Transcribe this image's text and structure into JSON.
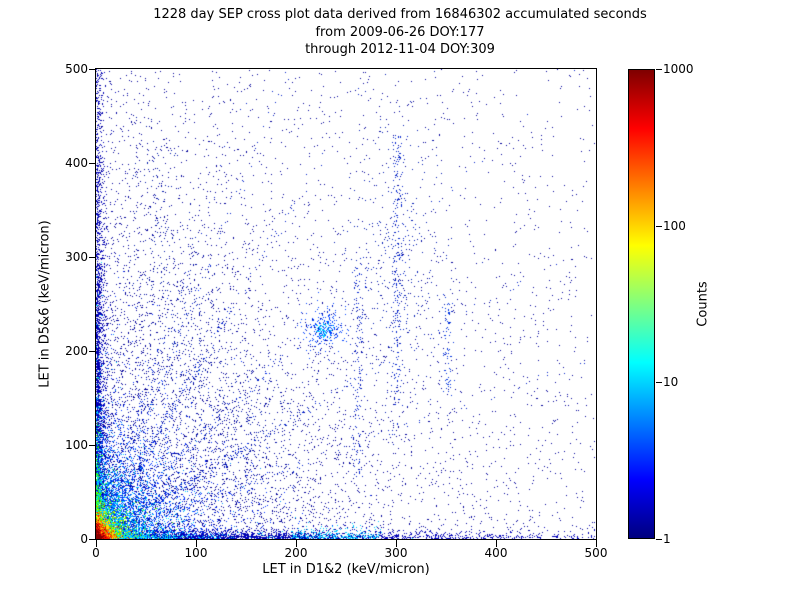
{
  "chart_data": {
    "type": "heatmap",
    "title_lines": [
      "1228 day SEP cross plot data derived from 16846302 accumulated seconds",
      "from 2009-06-26 DOY:177",
      "through 2012-11-04 DOY:309"
    ],
    "xlabel": "LET in D1&2 (keV/micron)",
    "ylabel": "LET in D5&6 (keV/micron)",
    "xlim": [
      0,
      500
    ],
    "ylim": [
      0,
      500
    ],
    "xticks": [
      "0",
      "100",
      "200",
      "300",
      "400",
      "500"
    ],
    "yticks": [
      "500",
      "400",
      "300",
      "200",
      "100",
      "0"
    ],
    "grid": false,
    "colorbar": {
      "label": "Counts",
      "scale": "log",
      "min": 1,
      "max": 1000,
      "ticks": [
        "1000",
        "100",
        "10",
        "1"
      ],
      "colormap": "jet"
    },
    "summary": "2D histogram of particle LET coincidence events; extremely dense hot spot (counts up to ~1000, red) at the origin, cyan/green halo below ~20 keV/micron, dense blue bands hugging both axes, faint diagonal ray tracks fanning out from the origin, a small cluster near (228,222), sparse vertical streaks near x=262, x=302 and x=352, and a diffuse field of single-count dark blue events over the full 0-500 range.",
    "render": {
      "seed": 20091771,
      "groups": [
        {
          "type": "uniform",
          "n": 1500,
          "color": "#000099",
          "x0": 0,
          "x1": 500,
          "y0": 0,
          "y1": 500
        },
        {
          "type": "exp2",
          "n": 5200,
          "color": "#000099",
          "mx": 140,
          "my": 170
        },
        {
          "type": "exp2",
          "n": 2800,
          "color": "#0000b8",
          "mx": 3,
          "my": 170
        },
        {
          "type": "exp2",
          "n": 700,
          "color": "#0000a8",
          "mx": 6,
          "my": 330
        },
        {
          "type": "exp2",
          "n": 2800,
          "color": "#0000b8",
          "mx": 160,
          "my": 3
        },
        {
          "type": "uniformx_expy",
          "n": 260,
          "color": "#00c8ff",
          "x0": 195,
          "x1": 285,
          "my": 4
        },
        {
          "type": "ray",
          "n": 200,
          "color": "#0022cc",
          "dx": 1,
          "dy": 2.6,
          "mt": 70,
          "jitter": 2.5
        },
        {
          "type": "ray",
          "n": 190,
          "color": "#0022cc",
          "dx": 1,
          "dy": 1.8,
          "mt": 80,
          "jitter": 2.5
        },
        {
          "type": "ray",
          "n": 240,
          "color": "#0022cc",
          "dx": 1,
          "dy": 1.05,
          "mt": 95,
          "jitter": 2.5
        },
        {
          "type": "ray",
          "n": 190,
          "color": "#0022cc",
          "dx": 1,
          "dy": 0.65,
          "mt": 85,
          "jitter": 2.5
        },
        {
          "type": "ray",
          "n": 170,
          "color": "#0022cc",
          "dx": 1.55,
          "dy": 1,
          "mt": 80,
          "jitter": 2.5
        },
        {
          "type": "ray",
          "n": 170,
          "color": "#0022cc",
          "dx": 2.6,
          "dy": 1,
          "mt": 70,
          "jitter": 2.5
        },
        {
          "type": "ray",
          "n": 190,
          "color": "#0022cc",
          "dx": 0.55,
          "dy": 1,
          "mt": 90,
          "jitter": 2.5
        },
        {
          "type": "ray",
          "n": 170,
          "color": "#0022cc",
          "dx": 0.32,
          "dy": 1,
          "mt": 100,
          "jitter": 2.5
        },
        {
          "type": "gauss",
          "n": 260,
          "color": "#0040ff",
          "cx": 228,
          "cy": 222,
          "sx": 10,
          "sy": 10
        },
        {
          "type": "gauss",
          "n": 70,
          "color": "#00ccff",
          "cx": 228,
          "cy": 222,
          "sx": 4,
          "sy": 4
        },
        {
          "type": "vstreak",
          "n": 230,
          "color": "#0022cc",
          "cx": 302,
          "sx": 3,
          "y0": 140,
          "y1": 430
        },
        {
          "type": "vstreak",
          "n": 140,
          "color": "#0022cc",
          "cx": 262,
          "sx": 3,
          "y0": 60,
          "y1": 300
        },
        {
          "type": "vstreak",
          "n": 80,
          "color": "#0033dd",
          "cx": 352,
          "sx": 2.5,
          "y0": 150,
          "y1": 260
        },
        {
          "type": "gauss",
          "n": 300,
          "color": "#001bb3",
          "cx": 300,
          "cy": 300,
          "sx": 25,
          "sy": 80
        },
        {
          "type": "gauss",
          "n": 260,
          "color": "#0018aa",
          "cx": 150,
          "cy": 120,
          "sx": 30,
          "sy": 40
        },
        {
          "type": "gauss",
          "n": 200,
          "color": "#0018aa",
          "cx": 95,
          "cy": 200,
          "sx": 18,
          "sy": 55
        },
        {
          "type": "gauss",
          "n": 150,
          "color": "#0018aa",
          "cx": 60,
          "cy": 320,
          "sx": 14,
          "sy": 55
        },
        {
          "type": "exp2",
          "n": 2300,
          "color": "#0031ff",
          "mx": 40,
          "my": 46
        },
        {
          "type": "exp2",
          "n": 1600,
          "color": "#0090ff",
          "mx": 25,
          "my": 29
        },
        {
          "type": "exp2",
          "n": 420,
          "color": "#00d9ff",
          "mx": 2.5,
          "my": 50
        },
        {
          "type": "exp2",
          "n": 380,
          "color": "#00d9ff",
          "mx": 48,
          "my": 2.5
        },
        {
          "type": "exp2",
          "n": 1200,
          "color": "#00e5ff",
          "mx": 16,
          "my": 18
        },
        {
          "type": "exp2",
          "n": 300,
          "color": "#2bff00",
          "mx": 2,
          "my": 30
        },
        {
          "type": "exp2",
          "n": 850,
          "color": "#52ff00",
          "mx": 11,
          "my": 12
        },
        {
          "type": "exp2",
          "n": 800,
          "color": "#ffe100",
          "mx": 7.5,
          "my": 8.5
        },
        {
          "type": "exp2",
          "n": 700,
          "color": "#ff7300",
          "mx": 5,
          "my": 6
        },
        {
          "type": "exp2",
          "n": 600,
          "color": "#f01000",
          "mx": 3.2,
          "my": 4.5
        },
        {
          "type": "exp2",
          "n": 260,
          "color": "#8c0000",
          "mx": 1.8,
          "my": 2.6
        }
      ]
    }
  }
}
